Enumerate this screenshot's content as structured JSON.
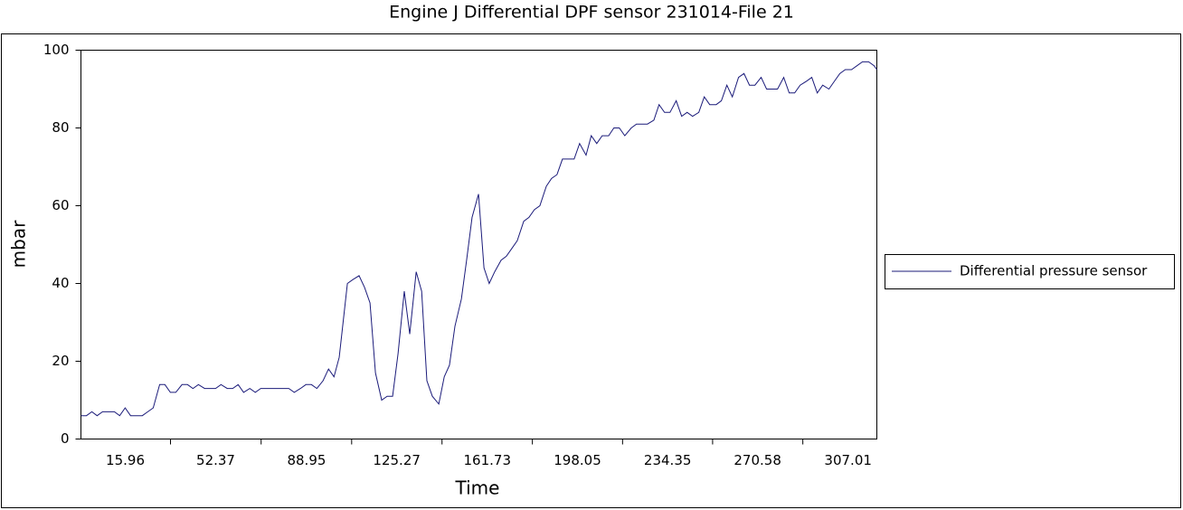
{
  "chart_data": {
    "type": "line",
    "title": "Engine J Differential DPF sensor 231014-File 21",
    "x_label": "Time",
    "y_label": "mbar",
    "xlim": [
      -1.9,
      318.6
    ],
    "ylim": [
      0,
      100
    ],
    "xticks": [
      15.96,
      52.37,
      88.95,
      125.27,
      161.73,
      198.05,
      234.35,
      270.58,
      307.01
    ],
    "yticks": [
      0,
      20,
      40,
      60,
      80,
      100
    ],
    "grid": false,
    "legend": "right",
    "x": [
      -1.9,
      0.3,
      2.5,
      4.6,
      6.8,
      9.4,
      11.6,
      13.7,
      15.9,
      18.1,
      20.3,
      22.8,
      25.0,
      27.2,
      29.8,
      31.9,
      34.1,
      36.3,
      38.8,
      41.0,
      43.2,
      45.4,
      47.9,
      50.1,
      52.3,
      54.5,
      57.0,
      59.2,
      61.4,
      63.6,
      66.1,
      68.3,
      70.5,
      72.7,
      74.9,
      77.4,
      79.6,
      81.8,
      84.0,
      86.5,
      88.7,
      90.9,
      93.1,
      95.6,
      97.8,
      100.0,
      102.1,
      105.4,
      107.6,
      110.1,
      112.3,
      114.5,
      116.7,
      119.2,
      121.4,
      123.6,
      125.8,
      128.3,
      130.5,
      133.1,
      135.3,
      137.4,
      139.6,
      142.2,
      144.4,
      146.5,
      148.7,
      151.3,
      153.4,
      155.6,
      158.2,
      160.4,
      162.5,
      164.7,
      167.3,
      169.4,
      171.6,
      173.8,
      176.4,
      178.5,
      180.7,
      182.9,
      185.5,
      187.6,
      189.8,
      192.0,
      194.6,
      196.7,
      198.9,
      201.5,
      203.6,
      205.8,
      208.0,
      210.6,
      212.7,
      214.9,
      217.1,
      219.7,
      221.8,
      224.0,
      226.2,
      228.8,
      230.9,
      233.1,
      235.3,
      237.8,
      240.0,
      242.2,
      244.4,
      246.9,
      249.1,
      251.3,
      253.9,
      256.0,
      258.2,
      260.4,
      262.9,
      265.1,
      267.3,
      269.5,
      272.0,
      274.2,
      276.4,
      278.6,
      281.1,
      283.3,
      285.5,
      287.7,
      290.2,
      292.4,
      294.6,
      296.8,
      299.3,
      301.5,
      303.7,
      305.9,
      308.4,
      310.6,
      312.8,
      315.3,
      317.5,
      318.6
    ],
    "series": [
      {
        "name": "Differential pressure sensor",
        "color": "#1b1b7a",
        "values": [
          6,
          6,
          7,
          6,
          7,
          7,
          7,
          6,
          8,
          6,
          6,
          6,
          7,
          8,
          14,
          14,
          12,
          12,
          14,
          14,
          13,
          14,
          13,
          13,
          13,
          14,
          13,
          13,
          14,
          12,
          13,
          12,
          13,
          13,
          13,
          13,
          13,
          13,
          12,
          13,
          14,
          14,
          13,
          15,
          18,
          16,
          21,
          40,
          41,
          42,
          39,
          35,
          17,
          10,
          11,
          11,
          22,
          38,
          27,
          43,
          38,
          15,
          11,
          9,
          16,
          19,
          29,
          36,
          46,
          57,
          63,
          44,
          40,
          43,
          46,
          47,
          49,
          51,
          56,
          57,
          59,
          60,
          65,
          67,
          68,
          72,
          72,
          72,
          76,
          73,
          78,
          76,
          78,
          78,
          80,
          80,
          78,
          80,
          81,
          81,
          81,
          82,
          86,
          84,
          84,
          87,
          83,
          84,
          83,
          84,
          88,
          86,
          86,
          87,
          91,
          88,
          93,
          94,
          91,
          91,
          93,
          90,
          90,
          90,
          93,
          89,
          89,
          91,
          92,
          93,
          89,
          91,
          90,
          92,
          94,
          95,
          95,
          96,
          97,
          97,
          96,
          95
        ]
      }
    ]
  }
}
